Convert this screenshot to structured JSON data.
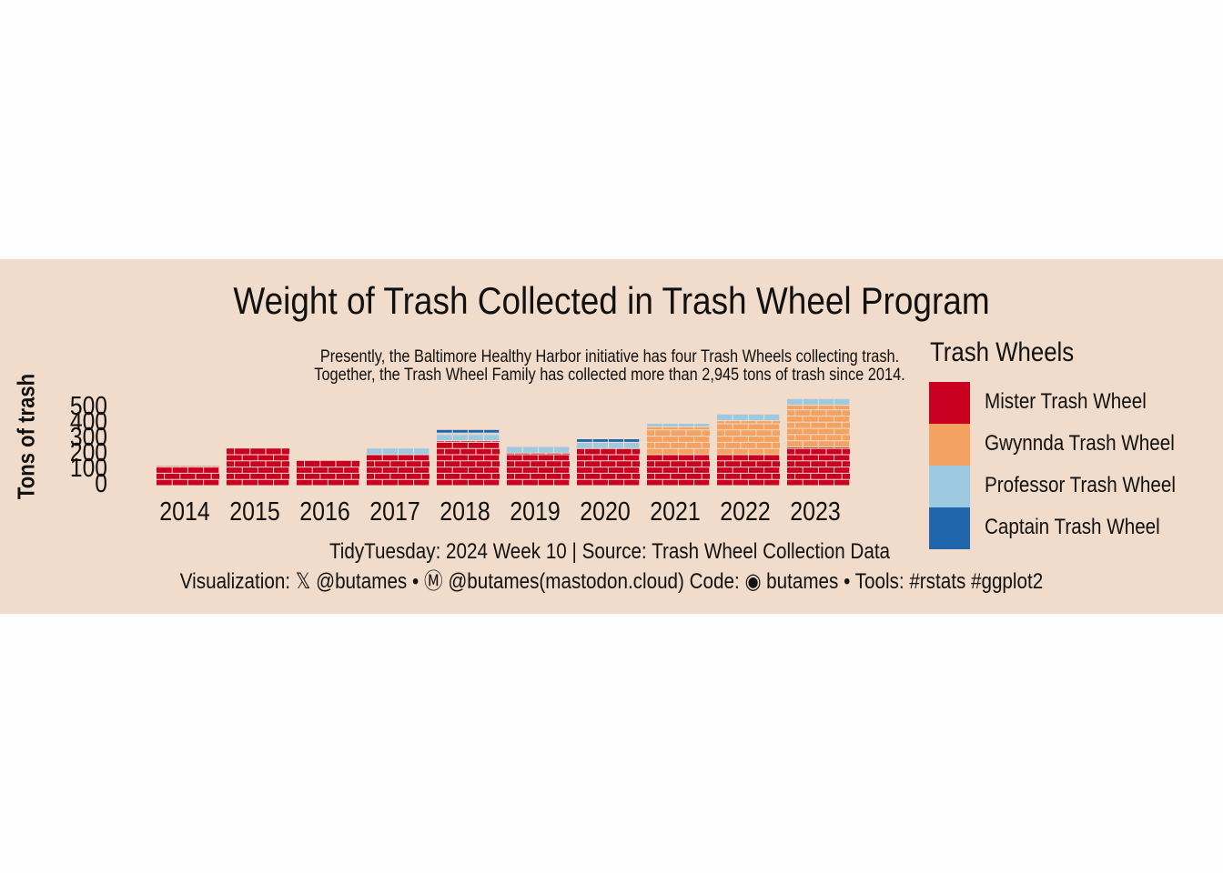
{
  "chart_data": {
    "type": "bar",
    "title": "Weight of Trash Collected in Trash Wheel Program",
    "subtitle": [
      "Presently, the Baltimore Healthy Harbor initiative has four Trash Wheels collecting trash.",
      "Together, the Trash Wheel Family has collected more than 2,945 tons of trash since 2014."
    ],
    "ylabel": "Tons of trash",
    "xlabel": "",
    "yticks": [
      0,
      100,
      200,
      300,
      400,
      500
    ],
    "ylim": [
      0,
      520
    ],
    "categories": [
      "2014",
      "2015",
      "2016",
      "2017",
      "2018",
      "2019",
      "2020",
      "2021",
      "2022",
      "2023"
    ],
    "stacking": "stacked",
    "series": [
      {
        "name": "Mister Trash Wheel",
        "color": "#ca0020",
        "values": [
          125,
          240,
          160,
          200,
          290,
          210,
          240,
          200,
          200,
          250
        ]
      },
      {
        "name": "Gwynnda Trash Wheel",
        "color": "#f4a261",
        "values": [
          0,
          0,
          0,
          0,
          0,
          0,
          0,
          180,
          220,
          270
        ]
      },
      {
        "name": "Professor Trash Wheel",
        "color": "#9ecae1",
        "values": [
          0,
          0,
          0,
          40,
          50,
          40,
          40,
          20,
          40,
          40
        ]
      },
      {
        "name": "Captain Trash Wheel",
        "color": "#2166ac",
        "values": [
          0,
          0,
          0,
          0,
          20,
          0,
          20,
          0,
          0,
          0
        ]
      }
    ],
    "legend": {
      "title": "Trash Wheels",
      "position": "right"
    },
    "grid": false,
    "caption": [
      "TidyTuesday: 2024 Week 10 | Source: Trash Wheel Collection Data",
      "Visualization: 𝕏 @butames • Ⓜ @butames(mastodon.cloud) Code: ◉ butames • Tools: #rstats #ggplot2"
    ]
  }
}
